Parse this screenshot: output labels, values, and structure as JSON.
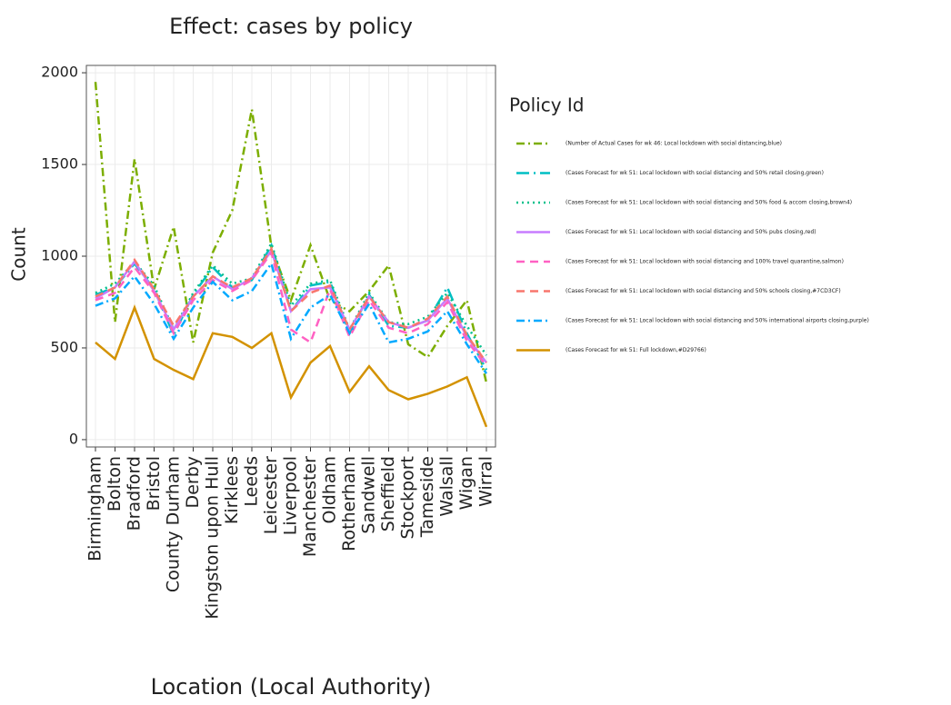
{
  "chart_data": {
    "type": "line",
    "title": "Effect: cases by policy",
    "x_label": "Location (Local Authority)",
    "y_label": "Count",
    "legend_title": "Policy Id",
    "legend_position": "right",
    "grid": true,
    "categories": [
      "Birmingham",
      "Bolton",
      "Bradford",
      "Bristol",
      "County Durham",
      "Derby",
      "Kingston upon Hull",
      "Kirklees",
      "Leeds",
      "Leicester",
      "Liverpool",
      "Manchester",
      "Oldham",
      "Rotherham",
      "Sandwell",
      "Sheffield",
      "Stockport",
      "Tameside",
      "Walsall",
      "Wigan",
      "Wirral"
    ],
    "ylim": [
      -40,
      2040
    ],
    "yticks": [
      0,
      500,
      1000,
      1500,
      2000
    ],
    "series": [
      {
        "name": "(Number of Actual Cases for wk 46: Local lockdown with social distancing,blue)",
        "color": "#7CAE00",
        "linestyle": "dashdot",
        "values": [
          1950,
          640,
          1530,
          820,
          1160,
          530,
          1020,
          1250,
          1800,
          1050,
          760,
          1060,
          760,
          700,
          810,
          950,
          520,
          450,
          620,
          760,
          310
        ]
      },
      {
        "name": "(Cases Forecast for wk 51: Local lockdown with social distancing and 50% retail closing,green)",
        "color": "#00BFC4",
        "linestyle": "longdashdot",
        "values": [
          790,
          830,
          960,
          820,
          570,
          790,
          940,
          830,
          870,
          1060,
          700,
          840,
          860,
          580,
          790,
          620,
          610,
          650,
          830,
          580,
          380
        ]
      },
      {
        "name": "(Cases Forecast for wk 51: Local lockdown with social distancing and 50% food & accom closing,brown4)",
        "color": "#00C08B",
        "linestyle": "dotted",
        "values": [
          800,
          850,
          970,
          840,
          600,
          800,
          950,
          850,
          880,
          1070,
          730,
          850,
          870,
          600,
          800,
          640,
          630,
          670,
          800,
          620,
          460
        ]
      },
      {
        "name": "(Cases Forecast for wk 51: Local lockdown with social distancing and 50% pubs closing,red)",
        "color": "#C77CFF",
        "linestyle": "solid",
        "values": [
          770,
          830,
          970,
          810,
          600,
          780,
          890,
          820,
          880,
          1030,
          700,
          820,
          830,
          600,
          780,
          640,
          610,
          650,
          770,
          560,
          420
        ]
      },
      {
        "name": "(Cases Forecast for wk 51: Local lockdown with social distancing and 100% travel quarantine,salmon)",
        "color": "#FF61C3",
        "linestyle": "dashed",
        "values": [
          760,
          800,
          940,
          800,
          580,
          760,
          870,
          810,
          870,
          1020,
          600,
          530,
          820,
          560,
          760,
          610,
          580,
          630,
          750,
          540,
          400
        ]
      },
      {
        "name": "(Cases Forecast for wk 51: Local lockdown with social distancing and 50% schools closing,#7CD3CF)",
        "color": "#F8766D",
        "linestyle": "dashed",
        "values": [
          780,
          830,
          980,
          820,
          620,
          780,
          890,
          830,
          880,
          1040,
          700,
          800,
          840,
          600,
          780,
          640,
          610,
          660,
          780,
          570,
          420
        ]
      },
      {
        "name": "(Cases Forecast for wk 51: Local lockdown with social distancing and 50% international airports closing,purple)",
        "color": "#00A9FF",
        "linestyle": "dashdot",
        "values": [
          730,
          770,
          890,
          740,
          550,
          720,
          860,
          760,
          810,
          960,
          550,
          720,
          790,
          580,
          740,
          530,
          550,
          590,
          700,
          520,
          360
        ]
      },
      {
        "name": "(Cases Forecast for wk 51: Full lockdown,#D29766)",
        "color": "#D39200",
        "linestyle": "solid",
        "values": [
          530,
          440,
          720,
          440,
          380,
          330,
          580,
          560,
          500,
          580,
          230,
          420,
          510,
          260,
          400,
          270,
          220,
          250,
          290,
          340,
          70
        ]
      }
    ]
  }
}
